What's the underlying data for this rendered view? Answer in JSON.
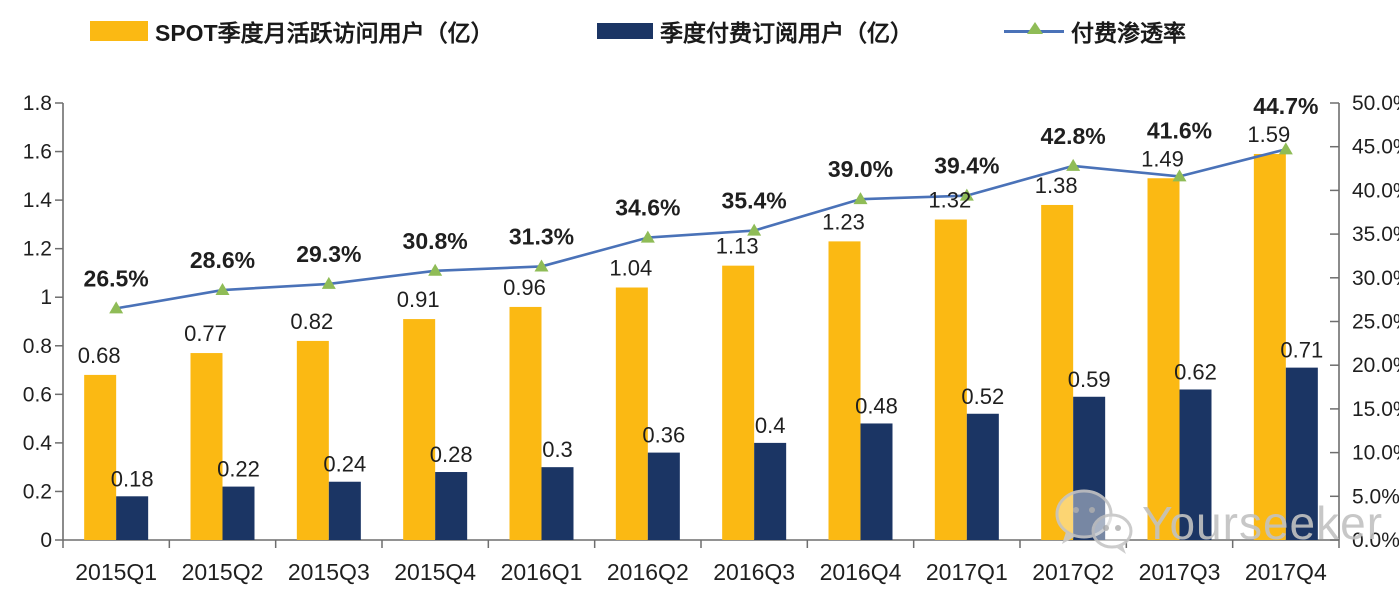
{
  "legend": [
    {
      "label": "SPOT季度月活跃访问用户（亿）",
      "swatch": "bar",
      "color": "#FBB913"
    },
    {
      "label": "季度付费订阅用户（亿）",
      "swatch": "bar",
      "color": "#1B3564"
    },
    {
      "label": "付费渗透率",
      "swatch": "line",
      "color": "#4A72B8",
      "marker_color": "#8FBC57"
    }
  ],
  "watermark": {
    "text": "Yourseeker",
    "icon": "wechat-bubbles-icon"
  },
  "chart_data": {
    "type": "bar",
    "subtype": "grouped-bars-with-line",
    "categories": [
      "2015Q1",
      "2015Q2",
      "2015Q3",
      "2015Q4",
      "2016Q1",
      "2016Q2",
      "2016Q3",
      "2016Q4",
      "2017Q1",
      "2017Q2",
      "2017Q3",
      "2017Q4"
    ],
    "series": [
      {
        "name": "SPOT季度月活跃访问用户（亿）",
        "type": "bar",
        "axis": "left",
        "color": "#FBB913",
        "values": [
          0.68,
          0.77,
          0.82,
          0.91,
          0.96,
          1.04,
          1.13,
          1.23,
          1.32,
          1.38,
          1.49,
          1.59
        ],
        "labels": [
          "0.68",
          "0.77",
          "0.82",
          "0.91",
          "0.96",
          "1.04",
          "1.13",
          "1.23",
          "1.32",
          "1.38",
          "1.49",
          "1.59"
        ]
      },
      {
        "name": "季度付费订阅用户（亿）",
        "type": "bar",
        "axis": "left",
        "color": "#1B3564",
        "values": [
          0.18,
          0.22,
          0.24,
          0.28,
          0.3,
          0.36,
          0.4,
          0.48,
          0.52,
          0.59,
          0.62,
          0.71
        ],
        "labels": [
          "0.18",
          "0.22",
          "0.24",
          "0.28",
          "0.3",
          "0.36",
          "0.4",
          "0.48",
          "0.52",
          "0.59",
          "0.62",
          "0.71"
        ]
      },
      {
        "name": "付费渗透率",
        "type": "line",
        "axis": "right",
        "color": "#4A72B8",
        "marker": "triangle-up",
        "marker_color": "#8FBC57",
        "values": [
          26.5,
          28.6,
          29.3,
          30.8,
          31.3,
          34.6,
          35.4,
          39.0,
          39.4,
          42.8,
          41.6,
          44.7
        ],
        "labels": [
          "26.5%",
          "28.6%",
          "29.3%",
          "30.8%",
          "31.3%",
          "34.6%",
          "35.4%",
          "39.0%",
          "39.4%",
          "42.8%",
          "41.6%",
          "44.7%"
        ]
      }
    ],
    "left_axis": {
      "min": 0,
      "max": 1.8,
      "tick_values": [
        0,
        0.2,
        0.4,
        0.6,
        0.8,
        1,
        1.2,
        1.4,
        1.6,
        1.8
      ],
      "tick_labels": [
        "0",
        "0.2",
        "0.4",
        "0.6",
        "0.8",
        "1",
        "1.2",
        "1.4",
        "1.6",
        "1.8"
      ]
    },
    "right_axis": {
      "min": 0,
      "max": 50,
      "tick_values": [
        0,
        5,
        10,
        15,
        20,
        25,
        30,
        35,
        40,
        45,
        50
      ],
      "tick_labels": [
        "0.0%",
        "5.0%",
        "10.0%",
        "15.0%",
        "20.0%",
        "25.0%",
        "30.0%",
        "35.0%",
        "40.0%",
        "45.0%",
        "50.0%"
      ]
    },
    "grid": false,
    "legend_position": "top",
    "title": "",
    "xlabel": "",
    "ylabel": ""
  },
  "colors": {
    "axis": "#6e6e6e",
    "text": "#1f1f1f",
    "watermark": "#c2c2c2"
  }
}
